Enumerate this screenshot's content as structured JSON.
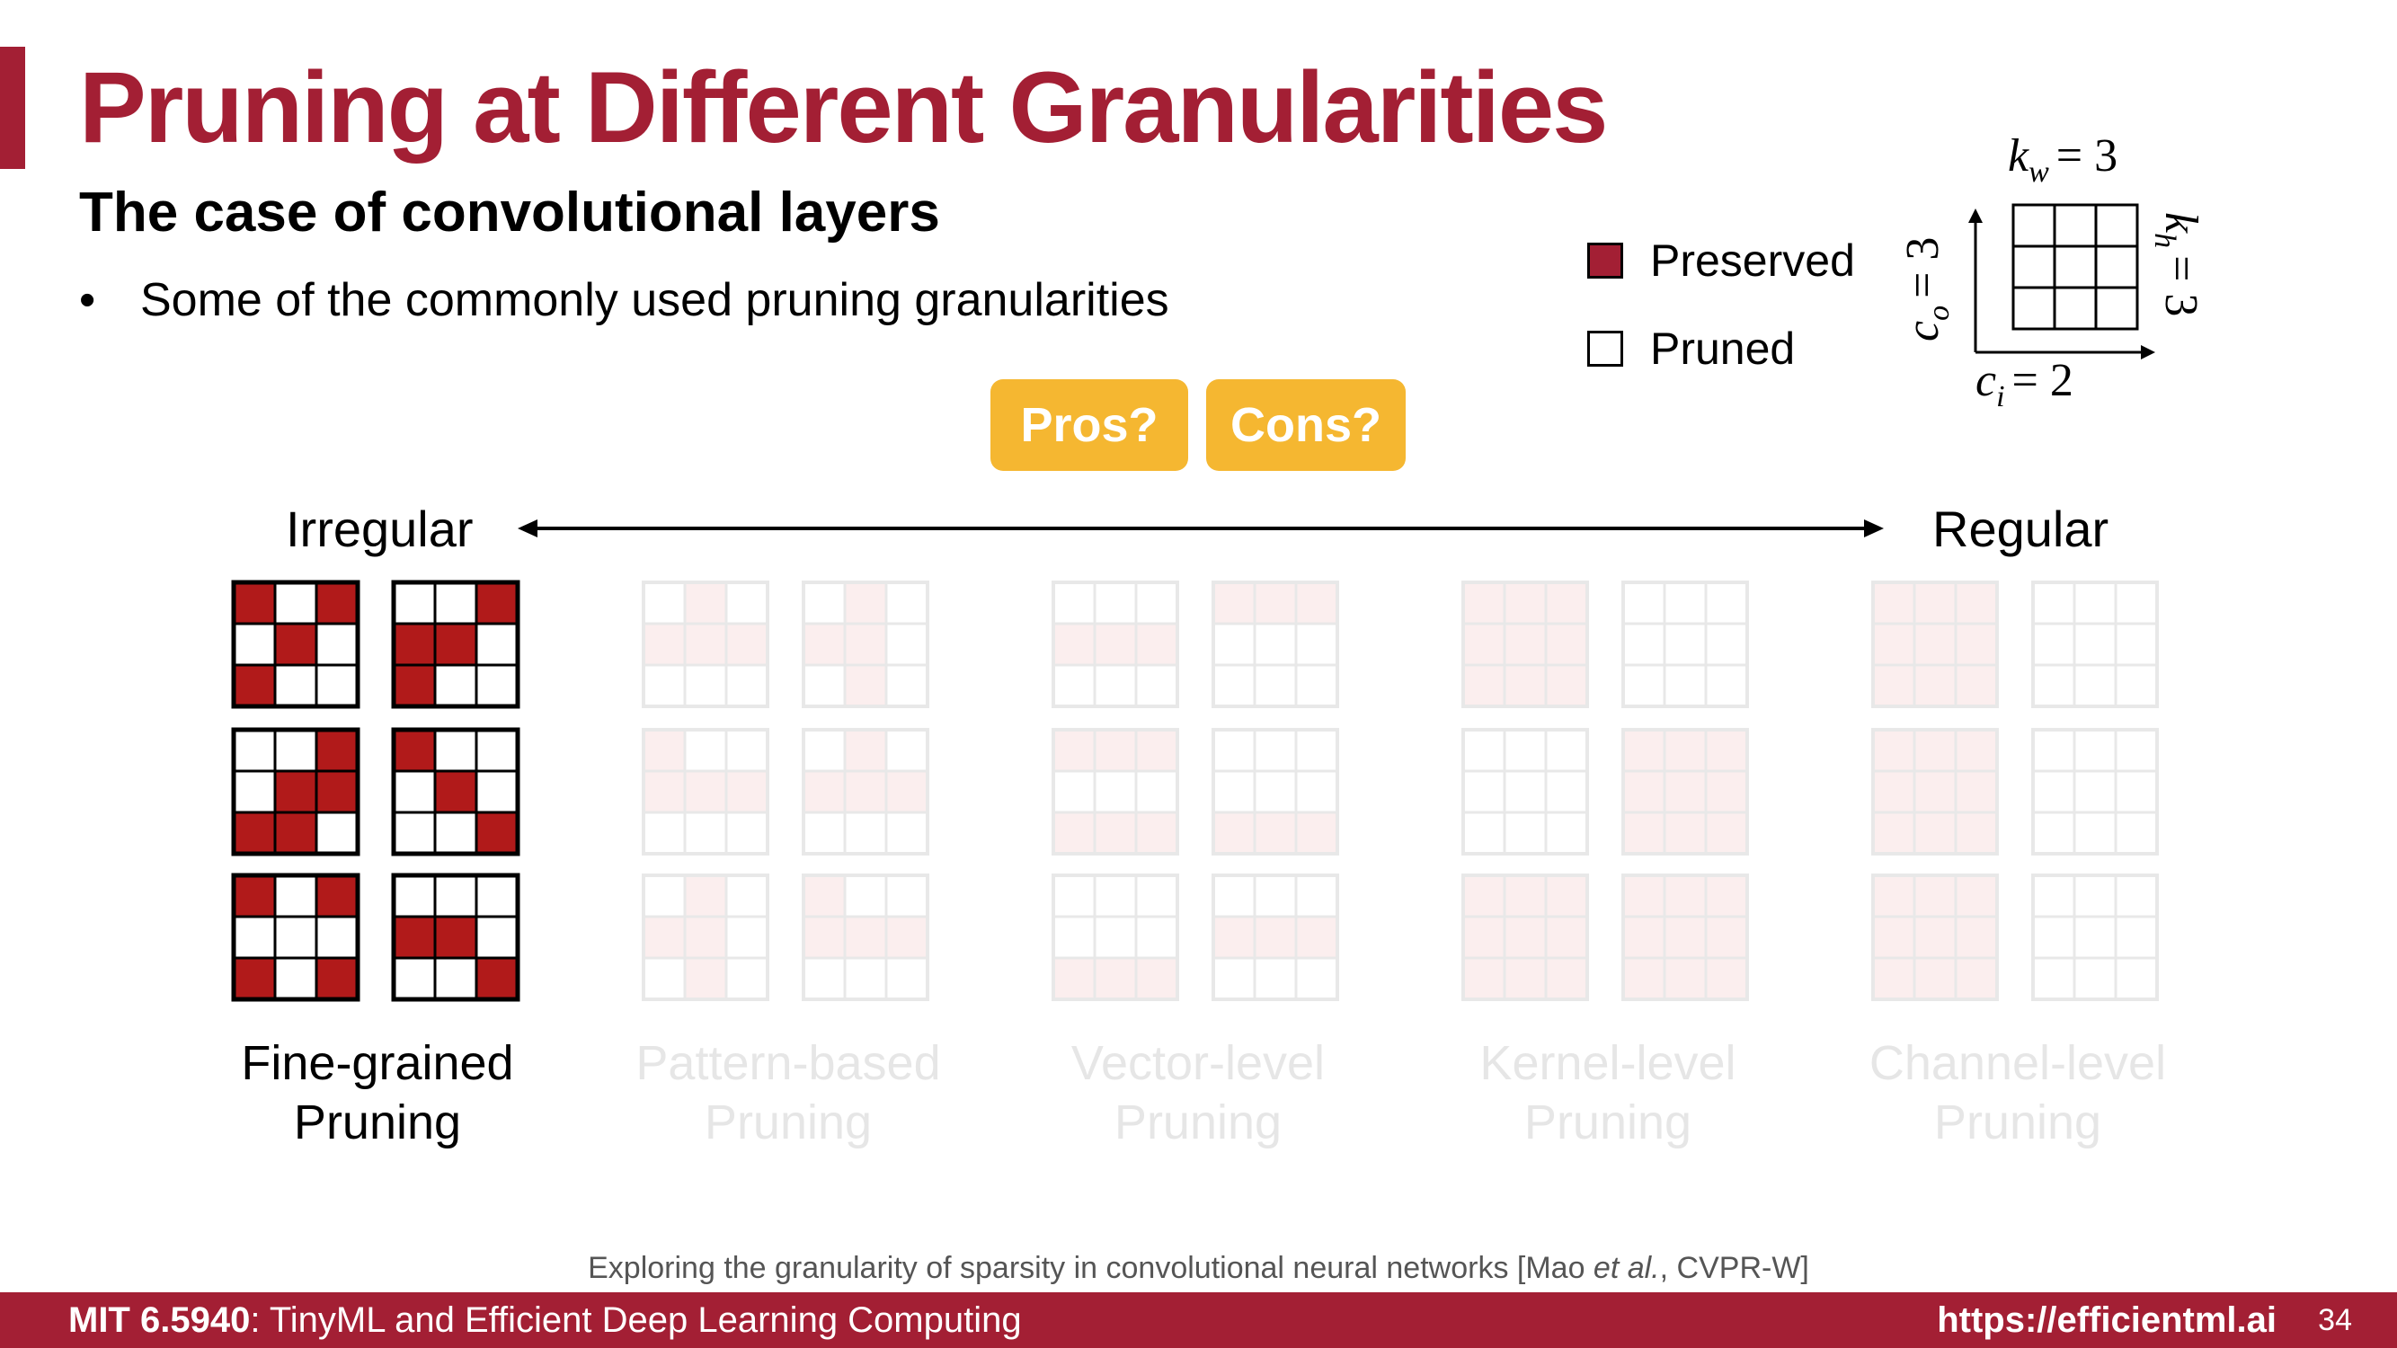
{
  "slide": {
    "title": "Pruning at Different Granularities",
    "subtitle": "The case of convolutional layers",
    "bullet": "Some of the commonly used pruning granularities"
  },
  "legend": {
    "preserved_label": "Preserved",
    "pruned_label": "Pruned"
  },
  "kernel_diagram": {
    "kw_label": "k",
    "kw_sub": "w",
    "kw_value": "= 3",
    "kh_label": "k",
    "kh_sub": "h",
    "kh_value": "= 3",
    "co_label": "c",
    "co_sub": "o",
    "co_value": "= 3",
    "ci_label": "c",
    "ci_sub": "i",
    "ci_value": "= 2"
  },
  "buttons": {
    "pros": "Pros?",
    "cons": "Cons?"
  },
  "spectrum": {
    "left": "Irregular",
    "right": "Regular"
  },
  "groups": [
    {
      "label_line1": "Fine-grained",
      "label_line2": "Pruning",
      "faded": false,
      "kernels": [
        [
          1,
          0,
          1,
          0,
          1,
          0,
          1,
          0,
          0
        ],
        [
          0,
          0,
          1,
          1,
          1,
          0,
          1,
          0,
          0
        ],
        [
          0,
          0,
          1,
          0,
          1,
          1,
          1,
          1,
          0
        ],
        [
          1,
          0,
          0,
          0,
          1,
          0,
          0,
          0,
          1
        ],
        [
          1,
          0,
          1,
          0,
          0,
          0,
          1,
          0,
          1
        ],
        [
          0,
          0,
          0,
          1,
          1,
          0,
          0,
          0,
          1
        ]
      ]
    },
    {
      "label_line1": "Pattern-based",
      "label_line2": "Pruning",
      "faded": true,
      "kernels": [
        [
          0,
          1,
          0,
          1,
          1,
          1,
          0,
          0,
          0
        ],
        [
          0,
          1,
          0,
          1,
          1,
          0,
          0,
          1,
          0
        ],
        [
          1,
          0,
          0,
          1,
          1,
          1,
          0,
          0,
          0
        ],
        [
          0,
          1,
          0,
          1,
          1,
          1,
          0,
          0,
          0
        ],
        [
          0,
          1,
          0,
          1,
          1,
          0,
          0,
          1,
          0
        ],
        [
          1,
          0,
          0,
          1,
          1,
          1,
          0,
          0,
          0
        ]
      ]
    },
    {
      "label_line1": "Vector-level",
      "label_line2": "Pruning",
      "faded": true,
      "kernels": [
        [
          0,
          0,
          0,
          1,
          1,
          1,
          0,
          0,
          0
        ],
        [
          1,
          1,
          1,
          0,
          0,
          0,
          0,
          0,
          0
        ],
        [
          1,
          1,
          1,
          0,
          0,
          0,
          1,
          1,
          1
        ],
        [
          0,
          0,
          0,
          0,
          0,
          0,
          1,
          1,
          1
        ],
        [
          0,
          0,
          0,
          0,
          0,
          0,
          1,
          1,
          1
        ],
        [
          0,
          0,
          0,
          1,
          1,
          1,
          0,
          0,
          0
        ]
      ]
    },
    {
      "label_line1": "Kernel-level",
      "label_line2": "Pruning",
      "faded": true,
      "kernels": [
        [
          1,
          1,
          1,
          1,
          1,
          1,
          1,
          1,
          1
        ],
        [
          0,
          0,
          0,
          0,
          0,
          0,
          0,
          0,
          0
        ],
        [
          0,
          0,
          0,
          0,
          0,
          0,
          0,
          0,
          0
        ],
        [
          1,
          1,
          1,
          1,
          1,
          1,
          1,
          1,
          1
        ],
        [
          1,
          1,
          1,
          1,
          1,
          1,
          1,
          1,
          1
        ],
        [
          1,
          1,
          1,
          1,
          1,
          1,
          1,
          1,
          1
        ]
      ]
    },
    {
      "label_line1": "Channel-level",
      "label_line2": "Pruning",
      "faded": true,
      "kernels": [
        [
          1,
          1,
          1,
          1,
          1,
          1,
          1,
          1,
          1
        ],
        [
          0,
          0,
          0,
          0,
          0,
          0,
          0,
          0,
          0
        ],
        [
          1,
          1,
          1,
          1,
          1,
          1,
          1,
          1,
          1
        ],
        [
          0,
          0,
          0,
          0,
          0,
          0,
          0,
          0,
          0
        ],
        [
          1,
          1,
          1,
          1,
          1,
          1,
          1,
          1,
          1
        ],
        [
          0,
          0,
          0,
          0,
          0,
          0,
          0,
          0,
          0
        ]
      ]
    }
  ],
  "colors": {
    "brand": "#a31f34",
    "preserved": "#b11a1a",
    "pill": "#f5b731",
    "faded_fill": "#fbeeee",
    "faded_stroke": "#e8e8e8"
  },
  "citation": {
    "before": "Exploring the granularity of sparsity in convolutional neural networks [Mao ",
    "etal": "et al.",
    "after": ", CVPR-W]"
  },
  "footer": {
    "course_code": "MIT 6.5940",
    "course_name": ": TinyML and Efficient Deep Learning Computing",
    "url": "https://efficientml.ai",
    "page": "34"
  }
}
